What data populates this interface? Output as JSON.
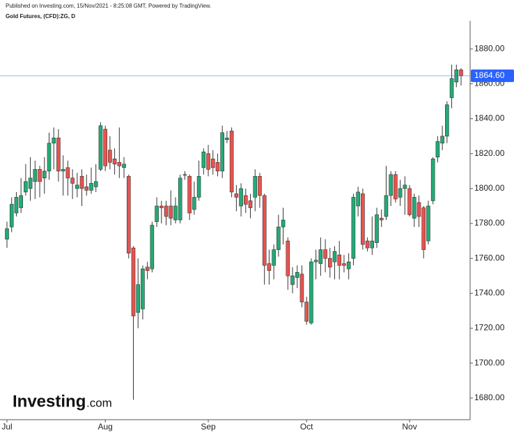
{
  "chart_data": {
    "type": "candlestick",
    "subtitle": "Published on Investing.com, 15/Nov/2021 - 8:25:08 GMT, Powered by TradingView.",
    "title": "Gold Futures, (CFD):ZG, D",
    "logo": {
      "name": "Investing",
      "suffix": ".com"
    },
    "categories": [
      "Jul",
      null,
      null,
      null,
      null,
      null,
      null,
      null,
      null,
      null,
      null,
      null,
      null,
      null,
      null,
      null,
      null,
      null,
      null,
      null,
      null,
      "Aug",
      null,
      null,
      null,
      null,
      null,
      null,
      null,
      null,
      null,
      null,
      null,
      null,
      null,
      null,
      null,
      null,
      null,
      null,
      null,
      null,
      null,
      "Sep",
      null,
      null,
      null,
      null,
      null,
      null,
      null,
      null,
      null,
      null,
      null,
      null,
      null,
      null,
      null,
      null,
      null,
      null,
      null,
      null,
      "Oct",
      null,
      null,
      null,
      null,
      null,
      null,
      null,
      null,
      null,
      null,
      null,
      null,
      null,
      null,
      null,
      null,
      null,
      null,
      null,
      null,
      null,
      "Nov",
      null,
      null,
      null,
      null,
      null,
      null,
      null,
      null,
      null,
      null,
      null
    ],
    "open": [
      1771,
      1778,
      1786,
      1789,
      1798,
      1800,
      1804,
      1811,
      1806,
      1810,
      1826,
      1829,
      1810,
      1812,
      1806,
      1800,
      1807,
      1801,
      1799,
      1801,
      1811,
      1834,
      1822,
      1817,
      1815,
      1812,
      1807,
      1766,
      1729,
      1731,
      1755,
      1754,
      1781,
      1790,
      1790,
      1790,
      1782,
      1782,
      1808,
      1807,
      1788,
      1795,
      1812,
      1820,
      1817,
      1815,
      1810,
      1828,
      1833,
      1797,
      1790,
      1796,
      1793,
      1795,
      1807,
      1796,
      1757,
      1756,
      1765,
      1778,
      1770,
      1745,
      1749,
      1751,
      1735,
      1723,
      1758,
      1757,
      1765,
      1760,
      1758,
      1762,
      1757,
      1754,
      1760,
      1790,
      1797,
      1770,
      1766,
      1769,
      1783,
      1784,
      1796,
      1808,
      1795,
      1800,
      1800,
      1783,
      1792,
      1789,
      1770,
      1793,
      1818,
      1826,
      1830,
      1852,
      1861,
      1868
    ],
    "high": [
      1781,
      1795,
      1798,
      1806,
      1814,
      1818,
      1816,
      1813,
      1818,
      1832,
      1835,
      1834,
      1819,
      1816,
      1811,
      1809,
      1811,
      1808,
      1812,
      1814,
      1838,
      1836,
      1830,
      1823,
      1835,
      1818,
      1808,
      1767,
      1760,
      1756,
      1758,
      1781,
      1795,
      1793,
      1793,
      1799,
      1795,
      1808,
      1810,
      1808,
      1804,
      1816,
      1823,
      1825,
      1822,
      1820,
      1836,
      1833,
      1835,
      1802,
      1803,
      1800,
      1797,
      1811,
      1809,
      1797,
      1765,
      1768,
      1785,
      1789,
      1772,
      1755,
      1756,
      1756,
      1738,
      1760,
      1765,
      1772,
      1771,
      1766,
      1767,
      1770,
      1762,
      1763,
      1797,
      1801,
      1800,
      1772,
      1784,
      1789,
      1788,
      1813,
      1810,
      1810,
      1805,
      1807,
      1802,
      1797,
      1796,
      1790,
      1793,
      1818,
      1830,
      1836,
      1850,
      1871,
      1871,
      1869
    ],
    "low": [
      1766,
      1775,
      1784,
      1786,
      1796,
      1793,
      1794,
      1795,
      1797,
      1805,
      1811,
      1804,
      1796,
      1796,
      1794,
      1795,
      1790,
      1796,
      1797,
      1798,
      1810,
      1810,
      1811,
      1808,
      1806,
      1806,
      1760,
      1679,
      1720,
      1725,
      1748,
      1752,
      1778,
      1780,
      1779,
      1779,
      1780,
      1780,
      1805,
      1782,
      1785,
      1793,
      1808,
      1807,
      1808,
      1807,
      1806,
      1826,
      1795,
      1787,
      1784,
      1786,
      1783,
      1787,
      1789,
      1745,
      1745,
      1748,
      1761,
      1768,
      1742,
      1740,
      1743,
      1732,
      1722,
      1722,
      1748,
      1750,
      1752,
      1749,
      1748,
      1748,
      1752,
      1748,
      1756,
      1784,
      1765,
      1764,
      1762,
      1766,
      1778,
      1782,
      1790,
      1792,
      1790,
      1785,
      1784,
      1778,
      1778,
      1760,
      1768,
      1791,
      1815,
      1822,
      1826,
      1846,
      1858,
      1859
    ],
    "close": [
      1777,
      1791,
      1795,
      1796,
      1804,
      1806,
      1811,
      1804,
      1810,
      1826,
      1829,
      1810,
      1811,
      1806,
      1803,
      1802,
      1800,
      1799,
      1803,
      1804,
      1836,
      1813,
      1815,
      1814,
      1813,
      1814,
      1763,
      1727,
      1745,
      1754,
      1753,
      1779,
      1790,
      1789,
      1784,
      1783,
      1790,
      1806,
      1808,
      1786,
      1795,
      1807,
      1821,
      1811,
      1812,
      1810,
      1832,
      1829,
      1798,
      1795,
      1800,
      1791,
      1789,
      1807,
      1796,
      1756,
      1753,
      1765,
      1778,
      1782,
      1750,
      1750,
      1752,
      1735,
      1724,
      1758,
      1759,
      1765,
      1760,
      1755,
      1764,
      1756,
      1756,
      1758,
      1795,
      1798,
      1768,
      1766,
      1770,
      1785,
      1782,
      1796,
      1808,
      1794,
      1800,
      1802,
      1785,
      1795,
      1784,
      1765,
      1790,
      1817,
      1827,
      1830,
      1848,
      1863,
      1868,
      1864.6
    ],
    "up_color": "#22ab76",
    "down_color": "#e8534f",
    "ylim": [
      1668,
      1908
    ],
    "yticks": [
      {
        "value": 1680,
        "label": "1680.00"
      },
      {
        "value": 1700,
        "label": "1700.00"
      },
      {
        "value": 1720,
        "label": "1720.00"
      },
      {
        "value": 1740,
        "label": "1740.00"
      },
      {
        "value": 1760,
        "label": "1760.00"
      },
      {
        "value": 1780,
        "label": "1780.00"
      },
      {
        "value": 1800,
        "label": "1800.00"
      },
      {
        "value": 1820,
        "label": "1820.00"
      },
      {
        "value": 1840,
        "label": "1840.00"
      },
      {
        "value": 1860,
        "label": "1860.00"
      },
      {
        "value": 1880,
        "label": "1880.00"
      }
    ],
    "price_line": {
      "value": 1864.6,
      "label": "1864.60",
      "color": "#2962ff"
    },
    "y_axis_side": "right"
  }
}
